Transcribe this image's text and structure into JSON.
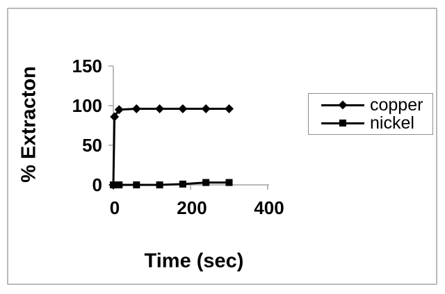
{
  "chart_data": {
    "type": "line",
    "title": "",
    "xlabel": "Time (sec)",
    "ylabel": "% Extracton",
    "xlim": [
      0,
      400
    ],
    "ylim": [
      0,
      150
    ],
    "xticks": [
      0,
      200,
      400
    ],
    "yticks": [
      0,
      50,
      100,
      150
    ],
    "grid": false,
    "legend_position": "right",
    "series": [
      {
        "name": "copper",
        "marker": "diamond",
        "color": "#000000",
        "x": [
          0,
          3,
          15,
          60,
          120,
          180,
          240,
          300
        ],
        "y": [
          0,
          86,
          95,
          96,
          96,
          96,
          96,
          96
        ]
      },
      {
        "name": "nickel",
        "marker": "square",
        "color": "#000000",
        "x": [
          0,
          15,
          60,
          120,
          180,
          240,
          300
        ],
        "y": [
          0,
          0,
          0,
          0,
          1,
          3,
          3
        ]
      }
    ]
  },
  "colors": {
    "series": "#000000",
    "axis": "#a3a3a3",
    "frame_border": "#b6babc",
    "legend_border": "#8c8c8c",
    "background": "#ffffff",
    "text": "#000000"
  }
}
